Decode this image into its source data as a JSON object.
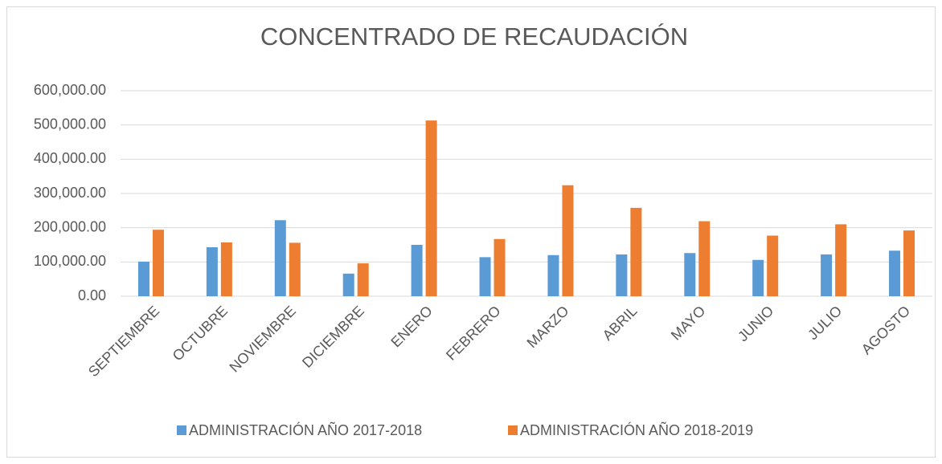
{
  "chart_data": {
    "type": "bar",
    "title": "CONCENTRADO DE RECAUDACIÓN",
    "categories": [
      "SEPTIEMBRE",
      "OCTUBRE",
      "NOVIEMBRE",
      "DICIEMBRE",
      "ENERO",
      "FEBRERO",
      "MARZO",
      "ABRIL",
      "MAYO",
      "JUNIO",
      "JULIO",
      "AGOSTO"
    ],
    "series": [
      {
        "name": "ADMINISTRACIÓN AÑO 2017-2018",
        "color": "#5b9bd5",
        "values": [
          101000,
          143000,
          222000,
          66000,
          150000,
          114000,
          120000,
          122000,
          126000,
          106000,
          122000,
          133000
        ]
      },
      {
        "name": "ADMINISTRACIÓN AÑO 2018-2019",
        "color": "#ed7d31",
        "values": [
          194000,
          157000,
          156000,
          96000,
          513000,
          167000,
          324000,
          258000,
          219000,
          177000,
          210000,
          192000
        ]
      }
    ],
    "ylim": [
      0,
      600000
    ],
    "yticks": [
      {
        "value": 0,
        "label": "0.00"
      },
      {
        "value": 100000,
        "label": "100,000.00"
      },
      {
        "value": 200000,
        "label": "200,000.00"
      },
      {
        "value": 300000,
        "label": "300,000.00"
      },
      {
        "value": 400000,
        "label": "400,000.00"
      },
      {
        "value": 500000,
        "label": "500,000.00"
      },
      {
        "value": 600000,
        "label": "600,000.00"
      }
    ],
    "grid": true,
    "legend": "bottom"
  }
}
